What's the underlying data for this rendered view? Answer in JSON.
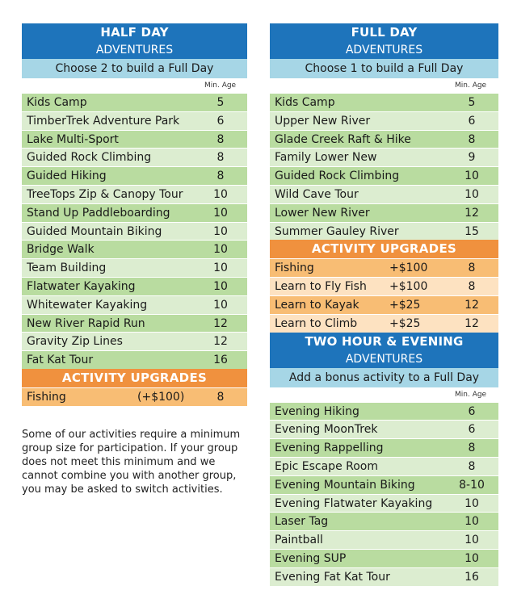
{
  "half_day": {
    "title": "HALF DAY",
    "subtitle": "ADVENTURES",
    "instruction": "Choose 2 to build a Full Day",
    "min_age_label": "Min. Age",
    "items": [
      {
        "name": "Kids Camp",
        "age": "5"
      },
      {
        "name": "TimberTrek Adventure Park",
        "age": "6"
      },
      {
        "name": "Lake Multi-Sport",
        "age": "8"
      },
      {
        "name": "Guided Rock Climbing",
        "age": "8"
      },
      {
        "name": "Guided Hiking",
        "age": "8"
      },
      {
        "name": "TreeTops Zip & Canopy Tour",
        "age": "10"
      },
      {
        "name": "Stand Up Paddleboarding",
        "age": "10"
      },
      {
        "name": "Guided Mountain Biking",
        "age": "10"
      },
      {
        "name": "Bridge Walk",
        "age": "10"
      },
      {
        "name": "Team Building",
        "age": "10"
      },
      {
        "name": "Flatwater Kayaking",
        "age": "10"
      },
      {
        "name": "Whitewater Kayaking",
        "age": "10"
      },
      {
        "name": "New River Rapid Run",
        "age": "12"
      },
      {
        "name": "Gravity Zip Lines",
        "age": "12"
      },
      {
        "name": "Fat Kat Tour",
        "age": "16"
      }
    ],
    "upgrades_title": "ACTIVITY UPGRADES",
    "upgrades": [
      {
        "name": "Fishing",
        "price": "(+$100)",
        "age": "8"
      }
    ]
  },
  "full_day": {
    "title": "FULL DAY",
    "subtitle": "ADVENTURES",
    "instruction": "Choose 1 to build a Full Day",
    "min_age_label": "Min. Age",
    "items": [
      {
        "name": "Kids Camp",
        "age": "5"
      },
      {
        "name": "Upper New River",
        "age": "6"
      },
      {
        "name": "Glade Creek Raft & Hike",
        "age": "8"
      },
      {
        "name": "Family Lower New",
        "age": "9"
      },
      {
        "name": "Guided Rock Climbing",
        "age": "10"
      },
      {
        "name": "Wild Cave Tour",
        "age": "10"
      },
      {
        "name": "Lower New River",
        "age": "12"
      },
      {
        "name": "Summer Gauley River",
        "age": "15"
      }
    ],
    "upgrades_title": "ACTIVITY UPGRADES",
    "upgrades": [
      {
        "name": "Fishing",
        "price": "+$100",
        "age": "8"
      },
      {
        "name": "Learn to Fly Fish",
        "price": "+$100",
        "age": "8"
      },
      {
        "name": "Learn to Kayak",
        "price": "+$25",
        "age": "12"
      },
      {
        "name": "Learn to Climb",
        "price": "+$25",
        "age": "12"
      }
    ]
  },
  "two_hour": {
    "title": "TWO HOUR & EVENING",
    "subtitle": "ADVENTURES",
    "instruction": "Add a bonus activity to a Full Day",
    "min_age_label": "Min. Age",
    "items": [
      {
        "name": "Evening Hiking",
        "age": "6"
      },
      {
        "name": "Evening MoonTrek",
        "age": "6"
      },
      {
        "name": "Evening Rappelling",
        "age": "8"
      },
      {
        "name": "Epic Escape Room",
        "age": "8"
      },
      {
        "name": "Evening Mountain Biking",
        "age": "8-10"
      },
      {
        "name": "Evening Flatwater Kayaking",
        "age": "10"
      },
      {
        "name": "Laser Tag",
        "age": "10"
      },
      {
        "name": "Paintball",
        "age": "10"
      },
      {
        "name": "Evening SUP",
        "age": "10"
      },
      {
        "name": "Evening Fat Kat Tour",
        "age": "16"
      }
    ]
  },
  "note": "Some of our activities require a minimum group size for participation. If your group does not meet this minimum and we cannot combine you with another group, you may be asked to switch activities.",
  "colors": {
    "header_blue": "#1e74bb",
    "subheader_lightblue": "#a6d6e6",
    "row_green": "#b9dca0",
    "row_lightgreen": "#dcedd0",
    "upgrade_bar_orange": "#f0913e",
    "row_orange": "#f8bd74",
    "row_lightorange": "#fde2c1"
  }
}
